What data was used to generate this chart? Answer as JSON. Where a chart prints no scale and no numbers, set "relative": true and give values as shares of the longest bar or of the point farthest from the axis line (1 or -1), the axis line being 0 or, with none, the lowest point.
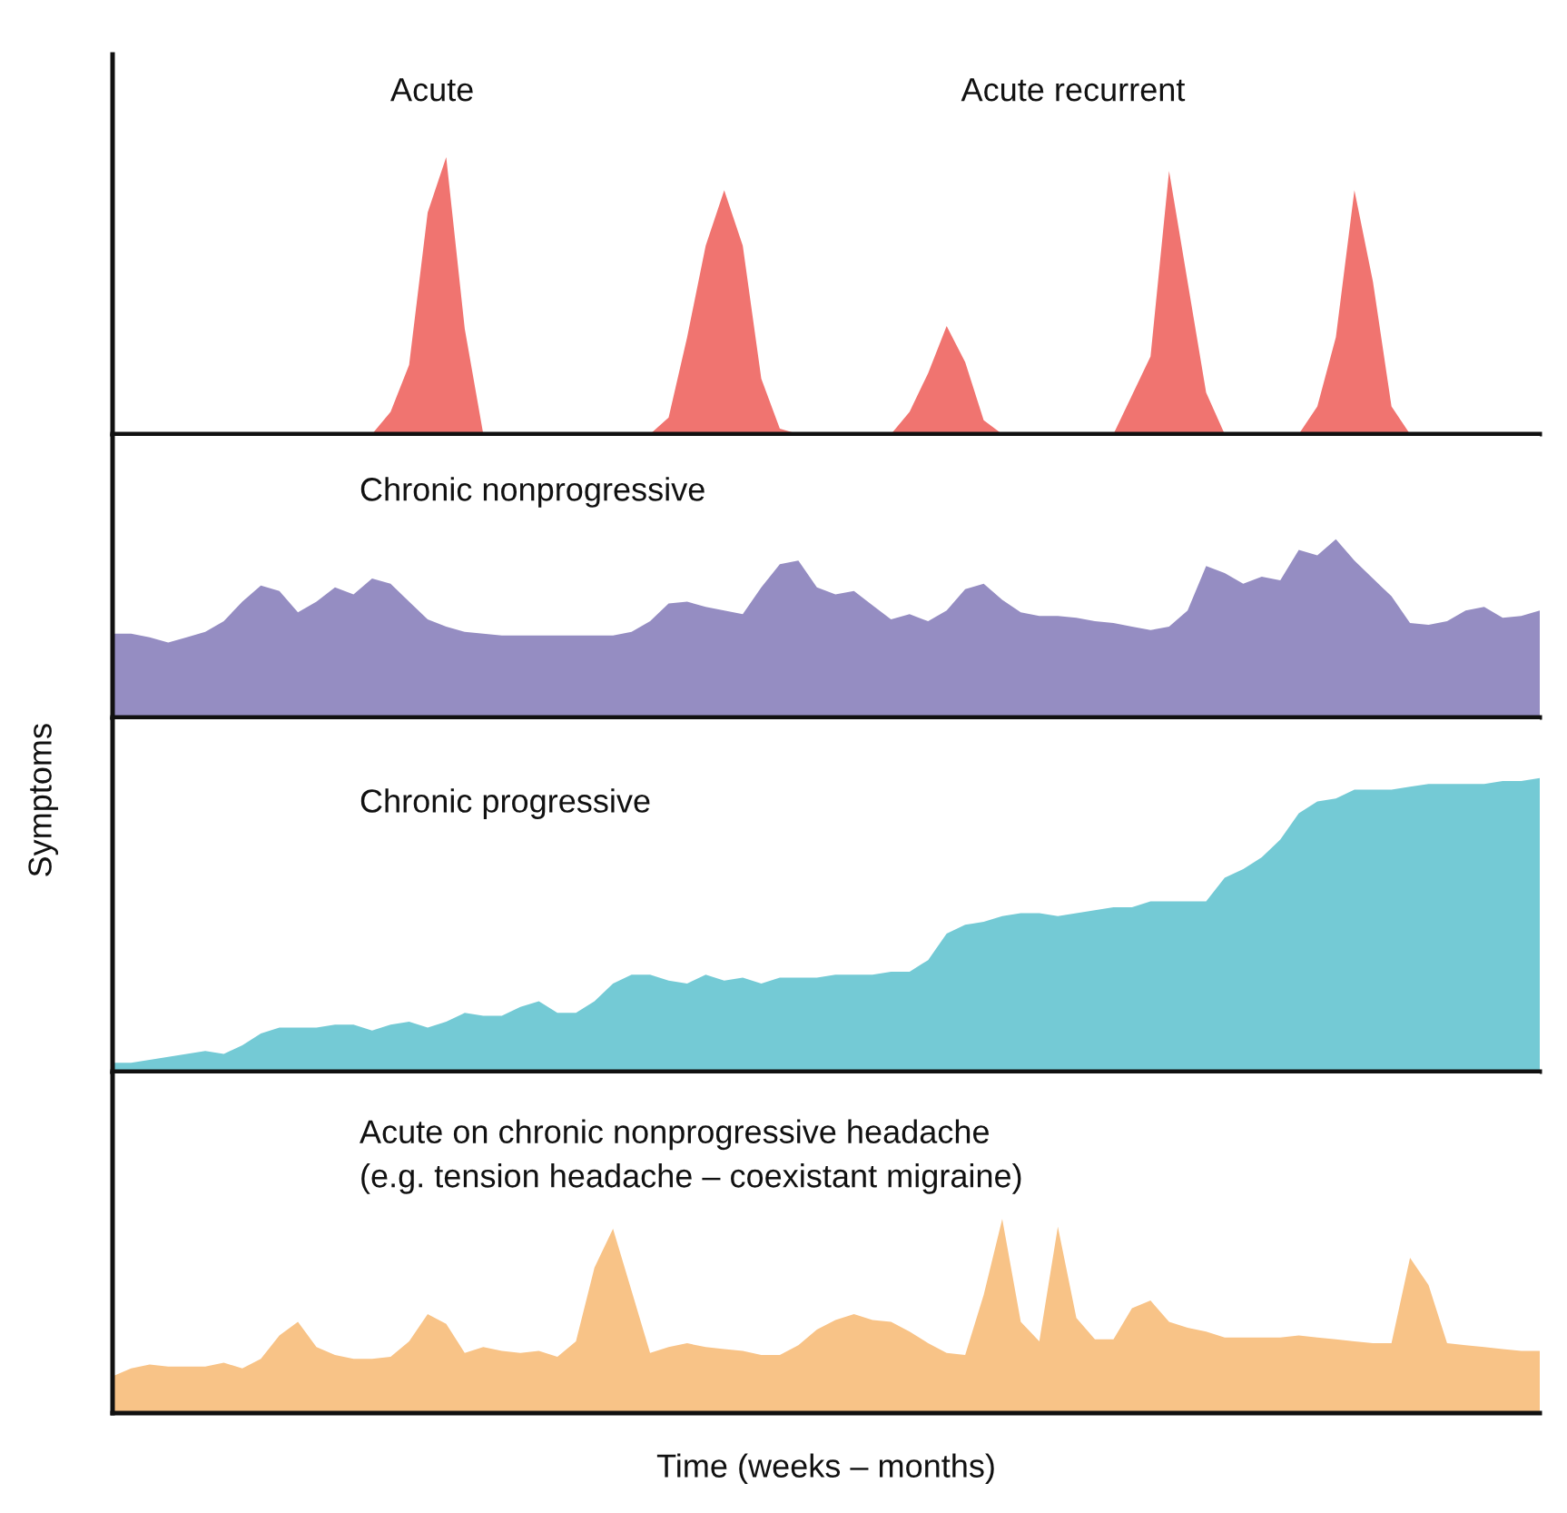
{
  "chart_data": [
    {
      "type": "area",
      "relative": true,
      "tick_labels": false,
      "annotations": [
        "Acute",
        "Acute recurrent"
      ],
      "categories": [
        null,
        null,
        null,
        null,
        null,
        null,
        null,
        null,
        null,
        null,
        null,
        null,
        null,
        null,
        null,
        null,
        null,
        null,
        null,
        null,
        null,
        null,
        null,
        null,
        null,
        null,
        null,
        null,
        null,
        null,
        null,
        null,
        null,
        null,
        null,
        null,
        null,
        null,
        null,
        null,
        null,
        null,
        null,
        null,
        null,
        null,
        null,
        null,
        null,
        null,
        null,
        null,
        null,
        null,
        null,
        null,
        null,
        null,
        null,
        null,
        null,
        null,
        null,
        null,
        null,
        null,
        null,
        null,
        null,
        null,
        null,
        null,
        null,
        null,
        null,
        null,
        null,
        null
      ],
      "series": [
        {
          "color": "#f07470",
          "values": [
            0,
            0,
            0,
            0,
            0,
            0,
            0,
            0,
            0,
            0,
            0,
            0,
            0,
            0,
            0,
            0.08,
            0.25,
            0.8,
            1.0,
            0.38,
            0,
            0,
            0,
            0,
            0,
            0,
            0,
            0,
            0,
            0,
            0.06,
            0.35,
            0.68,
            0.88,
            0.68,
            0.2,
            0.02,
            0,
            0,
            0,
            0,
            0,
            0,
            0.08,
            0.22,
            0.39,
            0.26,
            0.05,
            0,
            0,
            0,
            0,
            0,
            0,
            0,
            0.14,
            0.28,
            0.95,
            0.55,
            0.15,
            0,
            0,
            0,
            0,
            0,
            0.1,
            0.35,
            0.88,
            0.55,
            0.1,
            0,
            0,
            0,
            0,
            0,
            0,
            0,
            0
          ]
        }
      ]
    },
    {
      "type": "area",
      "relative": true,
      "tick_labels": false,
      "annotations": [
        "Chronic nonprogressive"
      ],
      "categories": [
        null,
        null,
        null,
        null,
        null,
        null,
        null,
        null,
        null,
        null,
        null,
        null,
        null,
        null,
        null,
        null,
        null,
        null,
        null,
        null,
        null,
        null,
        null,
        null,
        null,
        null,
        null,
        null,
        null,
        null,
        null,
        null,
        null,
        null,
        null,
        null,
        null,
        null,
        null,
        null,
        null,
        null,
        null,
        null,
        null,
        null,
        null,
        null,
        null,
        null,
        null,
        null,
        null,
        null,
        null,
        null,
        null,
        null,
        null,
        null,
        null,
        null,
        null,
        null,
        null,
        null,
        null,
        null,
        null,
        null,
        null,
        null,
        null,
        null,
        null,
        null,
        null,
        null
      ],
      "series": [
        {
          "color": "#958dc2",
          "values": [
            0.47,
            0.47,
            0.45,
            0.42,
            0.45,
            0.48,
            0.54,
            0.65,
            0.74,
            0.71,
            0.59,
            0.65,
            0.73,
            0.69,
            0.78,
            0.75,
            0.65,
            0.55,
            0.51,
            0.48,
            0.47,
            0.46,
            0.46,
            0.46,
            0.46,
            0.46,
            0.46,
            0.46,
            0.48,
            0.54,
            0.64,
            0.65,
            0.62,
            0.6,
            0.58,
            0.73,
            0.86,
            0.88,
            0.73,
            0.69,
            0.71,
            0.63,
            0.55,
            0.58,
            0.54,
            0.6,
            0.72,
            0.75,
            0.66,
            0.59,
            0.57,
            0.57,
            0.56,
            0.54,
            0.53,
            0.51,
            0.49,
            0.51,
            0.6,
            0.85,
            0.81,
            0.75,
            0.79,
            0.77,
            0.94,
            0.91,
            1.0,
            0.88,
            0.78,
            0.68,
            0.53,
            0.52,
            0.54,
            0.6,
            0.62,
            0.56,
            0.57,
            0.6
          ]
        }
      ]
    },
    {
      "type": "area",
      "relative": true,
      "tick_labels": false,
      "ylabel": "Symptoms",
      "annotations": [
        "Chronic progressive"
      ],
      "categories": [
        null,
        null,
        null,
        null,
        null,
        null,
        null,
        null,
        null,
        null,
        null,
        null,
        null,
        null,
        null,
        null,
        null,
        null,
        null,
        null,
        null,
        null,
        null,
        null,
        null,
        null,
        null,
        null,
        null,
        null,
        null,
        null,
        null,
        null,
        null,
        null,
        null,
        null,
        null,
        null,
        null,
        null,
        null,
        null,
        null,
        null,
        null,
        null,
        null,
        null,
        null,
        null,
        null,
        null,
        null,
        null,
        null,
        null,
        null,
        null,
        null,
        null,
        null,
        null,
        null,
        null,
        null,
        null,
        null,
        null,
        null,
        null,
        null,
        null,
        null,
        null,
        null,
        null
      ],
      "series": [
        {
          "color": "#74cad5",
          "values": [
            0.03,
            0.03,
            0.04,
            0.05,
            0.06,
            0.07,
            0.06,
            0.09,
            0.13,
            0.15,
            0.15,
            0.15,
            0.16,
            0.16,
            0.14,
            0.16,
            0.17,
            0.15,
            0.17,
            0.2,
            0.19,
            0.19,
            0.22,
            0.24,
            0.2,
            0.2,
            0.24,
            0.3,
            0.33,
            0.33,
            0.31,
            0.3,
            0.33,
            0.31,
            0.32,
            0.3,
            0.32,
            0.32,
            0.32,
            0.33,
            0.33,
            0.33,
            0.34,
            0.34,
            0.38,
            0.47,
            0.5,
            0.51,
            0.53,
            0.54,
            0.54,
            0.53,
            0.54,
            0.55,
            0.56,
            0.56,
            0.58,
            0.58,
            0.58,
            0.58,
            0.66,
            0.69,
            0.73,
            0.79,
            0.88,
            0.92,
            0.93,
            0.96,
            0.96,
            0.96,
            0.97,
            0.98,
            0.98,
            0.98,
            0.98,
            0.99,
            0.99,
            1.0
          ]
        }
      ]
    },
    {
      "type": "area",
      "relative": true,
      "tick_labels": false,
      "xlabel": "Time (weeks – months)",
      "annotations": [
        "Acute on chronic nonprogressive headache",
        "(e.g. tension headache – coexistant migraine)"
      ],
      "categories": [
        null,
        null,
        null,
        null,
        null,
        null,
        null,
        null,
        null,
        null,
        null,
        null,
        null,
        null,
        null,
        null,
        null,
        null,
        null,
        null,
        null,
        null,
        null,
        null,
        null,
        null,
        null,
        null,
        null,
        null,
        null,
        null,
        null,
        null,
        null,
        null,
        null,
        null,
        null,
        null,
        null,
        null,
        null,
        null,
        null,
        null,
        null,
        null,
        null,
        null,
        null,
        null,
        null,
        null,
        null,
        null,
        null,
        null,
        null,
        null,
        null,
        null,
        null,
        null,
        null,
        null,
        null,
        null,
        null,
        null,
        null,
        null,
        null,
        null,
        null,
        null,
        null,
        null
      ],
      "series": [
        {
          "color": "#f8c387",
          "values": [
            0.19,
            0.23,
            0.25,
            0.24,
            0.24,
            0.24,
            0.26,
            0.23,
            0.28,
            0.4,
            0.47,
            0.34,
            0.3,
            0.28,
            0.28,
            0.29,
            0.37,
            0.51,
            0.46,
            0.31,
            0.34,
            0.32,
            0.31,
            0.32,
            0.29,
            0.37,
            0.75,
            0.95,
            0.63,
            0.31,
            0.34,
            0.36,
            0.34,
            0.33,
            0.32,
            0.3,
            0.3,
            0.35,
            0.43,
            0.48,
            0.51,
            0.48,
            0.47,
            0.42,
            0.36,
            0.31,
            0.3,
            0.61,
            1.0,
            0.47,
            0.37,
            0.96,
            0.49,
            0.38,
            0.38,
            0.54,
            0.58,
            0.47,
            0.44,
            0.42,
            0.39,
            0.39,
            0.39,
            0.39,
            0.4,
            0.39,
            0.38,
            0.37,
            0.36,
            0.36,
            0.8,
            0.66,
            0.36,
            0.35,
            0.34,
            0.33,
            0.32,
            0.32
          ]
        }
      ]
    }
  ]
}
